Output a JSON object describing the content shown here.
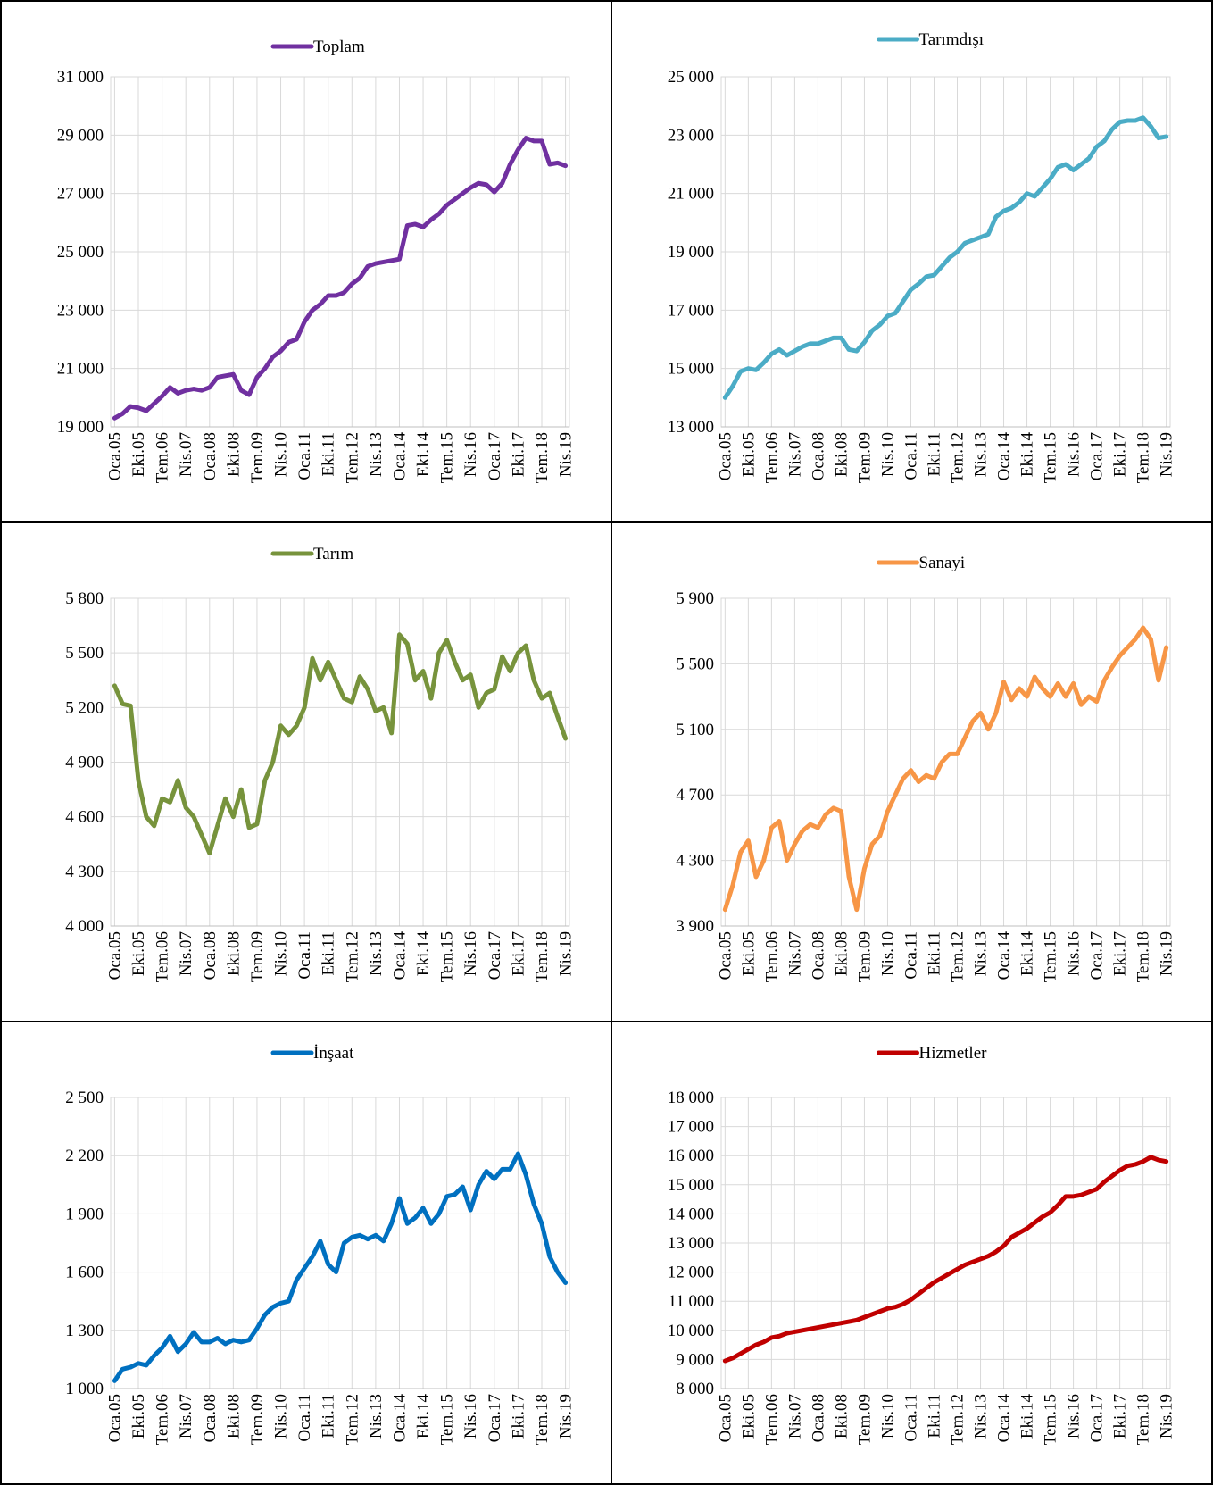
{
  "chart_data": [
    {
      "type": "line",
      "grid": true,
      "categories": [
        "Oca.05",
        null,
        null,
        "Eki.05",
        null,
        null,
        "Tem.06",
        null,
        null,
        "Nis.07",
        null,
        null,
        "Oca.08",
        null,
        null,
        "Eki.08",
        null,
        null,
        "Tem.09",
        null,
        null,
        "Nis.10",
        null,
        null,
        "Oca.11",
        null,
        null,
        "Eki.11",
        null,
        null,
        "Tem.12",
        null,
        null,
        "Nis.13",
        null,
        null,
        "Oca.14",
        null,
        null,
        "Eki.14",
        null,
        null,
        "Tem.15",
        null,
        null,
        "Nis.16",
        null,
        null,
        "Oca.17",
        null,
        null,
        "Eki.17",
        null,
        null,
        "Tem.18",
        null,
        null,
        "Nis.19"
      ],
      "series": [
        {
          "name": "Toplam",
          "color": "#7030a0",
          "values": [
            19300,
            19450,
            19700,
            19650,
            19550,
            19800,
            20050,
            20350,
            20150,
            20250,
            20300,
            20250,
            20350,
            20700,
            20750,
            20800,
            20250,
            20100,
            20700,
            21000,
            21400,
            21600,
            21900,
            22000,
            22600,
            23000,
            23200,
            23500,
            23500,
            23600,
            23900,
            24100,
            24500,
            24600,
            24650,
            24700,
            24750,
            25900,
            25950,
            25850,
            26100,
            26300,
            26600,
            26800,
            27000,
            27200,
            27350,
            27300,
            27050,
            27350,
            28000,
            28500,
            28900,
            28800,
            28800,
            28000,
            28050,
            27950
          ]
        }
      ],
      "ylim": [
        19000,
        31000
      ],
      "yticks": [
        {
          "value": 19000,
          "label": "19 000"
        },
        {
          "value": 21000,
          "label": "21 000"
        },
        {
          "value": 23000,
          "label": "23 000"
        },
        {
          "value": 25000,
          "label": "25 000"
        },
        {
          "value": 27000,
          "label": "27 000"
        },
        {
          "value": 29000,
          "label": "29 000"
        },
        {
          "value": 31000,
          "label": "31 000"
        }
      ]
    },
    {
      "type": "line",
      "grid": true,
      "categories": [
        "Oca.05",
        null,
        null,
        "Eki.05",
        null,
        null,
        "Tem.06",
        null,
        null,
        "Nis.07",
        null,
        null,
        "Oca.08",
        null,
        null,
        "Eki.08",
        null,
        null,
        "Tem.09",
        null,
        null,
        "Nis.10",
        null,
        null,
        "Oca.11",
        null,
        null,
        "Eki.11",
        null,
        null,
        "Tem.12",
        null,
        null,
        "Nis.13",
        null,
        null,
        "Oca.14",
        null,
        null,
        "Eki.14",
        null,
        null,
        "Tem.15",
        null,
        null,
        "Nis.16",
        null,
        null,
        "Oca.17",
        null,
        null,
        "Eki.17",
        null,
        null,
        "Tem.18",
        null,
        null,
        "Nis.19"
      ],
      "series": [
        {
          "name": "Tarımdışı",
          "color": "#4bacc6",
          "values": [
            14000,
            14400,
            14900,
            15000,
            14950,
            15200,
            15500,
            15650,
            15450,
            15600,
            15750,
            15850,
            15850,
            15950,
            16050,
            16050,
            15650,
            15600,
            15900,
            16300,
            16500,
            16800,
            16900,
            17300,
            17700,
            17900,
            18150,
            18200,
            18500,
            18800,
            19000,
            19300,
            19400,
            19500,
            19600,
            20200,
            20400,
            20500,
            20700,
            21000,
            20900,
            21200,
            21500,
            21900,
            22000,
            21800,
            22000,
            22200,
            22600,
            22800,
            23200,
            23450,
            23500,
            23500,
            23600,
            23300,
            22900,
            22950
          ]
        }
      ],
      "ylim": [
        13000,
        25000
      ],
      "yticks": [
        {
          "value": 13000,
          "label": "13 000"
        },
        {
          "value": 15000,
          "label": "15 000"
        },
        {
          "value": 17000,
          "label": "17 000"
        },
        {
          "value": 19000,
          "label": "19 000"
        },
        {
          "value": 21000,
          "label": "21 000"
        },
        {
          "value": 23000,
          "label": "23 000"
        },
        {
          "value": 25000,
          "label": "25 000"
        }
      ]
    },
    {
      "type": "line",
      "grid": true,
      "categories": [
        "Oca.05",
        null,
        null,
        "Eki.05",
        null,
        null,
        "Tem.06",
        null,
        null,
        "Nis.07",
        null,
        null,
        "Oca.08",
        null,
        null,
        "Eki.08",
        null,
        null,
        "Tem.09",
        null,
        null,
        "Nis.10",
        null,
        null,
        "Oca.11",
        null,
        null,
        "Eki.11",
        null,
        null,
        "Tem.12",
        null,
        null,
        "Nis.13",
        null,
        null,
        "Oca.14",
        null,
        null,
        "Eki.14",
        null,
        null,
        "Tem.15",
        null,
        null,
        "Nis.16",
        null,
        null,
        "Oca.17",
        null,
        null,
        "Eki.17",
        null,
        null,
        "Tem.18",
        null,
        null,
        "Nis.19"
      ],
      "series": [
        {
          "name": "Tarım",
          "color": "#77933c",
          "values": [
            5320,
            5220,
            5210,
            4800,
            4600,
            4550,
            4700,
            4680,
            4800,
            4650,
            4600,
            4500,
            4400,
            4550,
            4700,
            4600,
            4750,
            4540,
            4560,
            4800,
            4900,
            5100,
            5050,
            5100,
            5200,
            5470,
            5350,
            5450,
            5350,
            5250,
            5230,
            5370,
            5300,
            5180,
            5200,
            5060,
            5600,
            5550,
            5350,
            5400,
            5250,
            5500,
            5570,
            5450,
            5350,
            5380,
            5200,
            5280,
            5300,
            5480,
            5400,
            5500,
            5540,
            5350,
            5250,
            5280,
            5150,
            5030
          ]
        }
      ],
      "ylim": [
        4000,
        5800
      ],
      "yticks": [
        {
          "value": 4000,
          "label": "4 000"
        },
        {
          "value": 4300,
          "label": "4 300"
        },
        {
          "value": 4600,
          "label": "4 600"
        },
        {
          "value": 4900,
          "label": "4 900"
        },
        {
          "value": 5200,
          "label": "5 200"
        },
        {
          "value": 5500,
          "label": "5 500"
        },
        {
          "value": 5800,
          "label": "5 800"
        }
      ]
    },
    {
      "type": "line",
      "grid": true,
      "categories": [
        "Oca.05",
        null,
        null,
        "Eki.05",
        null,
        null,
        "Tem.06",
        null,
        null,
        "Nis.07",
        null,
        null,
        "Oca.08",
        null,
        null,
        "Eki.08",
        null,
        null,
        "Tem.09",
        null,
        null,
        "Nis.10",
        null,
        null,
        "Oca.11",
        null,
        null,
        "Eki.11",
        null,
        null,
        "Tem.12",
        null,
        null,
        "Nis.13",
        null,
        null,
        "Oca.14",
        null,
        null,
        "Eki.14",
        null,
        null,
        "Tem.15",
        null,
        null,
        "Nis.16",
        null,
        null,
        "Oca.17",
        null,
        null,
        "Eki.17",
        null,
        null,
        "Tem.18",
        null,
        null,
        "Nis.19"
      ],
      "series": [
        {
          "name": "Sanayi",
          "color": "#f79646",
          "values": [
            4000,
            4150,
            4350,
            4420,
            4200,
            4300,
            4500,
            4540,
            4300,
            4400,
            4480,
            4520,
            4500,
            4580,
            4620,
            4600,
            4200,
            4000,
            4250,
            4400,
            4450,
            4600,
            4700,
            4800,
            4850,
            4780,
            4820,
            4800,
            4900,
            4950,
            4950,
            5050,
            5150,
            5200,
            5100,
            5200,
            5390,
            5280,
            5350,
            5300,
            5420,
            5350,
            5300,
            5380,
            5300,
            5380,
            5250,
            5300,
            5270,
            5400,
            5480,
            5550,
            5600,
            5650,
            5720,
            5650,
            5400,
            5600
          ]
        }
      ],
      "ylim": [
        3900,
        5900
      ],
      "yticks": [
        {
          "value": 3900,
          "label": "3 900"
        },
        {
          "value": 4300,
          "label": "4 300"
        },
        {
          "value": 4700,
          "label": "4 700"
        },
        {
          "value": 5100,
          "label": "5 100"
        },
        {
          "value": 5500,
          "label": "5 500"
        },
        {
          "value": 5900,
          "label": "5 900"
        }
      ]
    },
    {
      "type": "line",
      "grid": true,
      "categories": [
        "Oca.05",
        null,
        null,
        "Eki.05",
        null,
        null,
        "Tem.06",
        null,
        null,
        "Nis.07",
        null,
        null,
        "Oca.08",
        null,
        null,
        "Eki.08",
        null,
        null,
        "Tem.09",
        null,
        null,
        "Nis.10",
        null,
        null,
        "Oca.11",
        null,
        null,
        "Eki.11",
        null,
        null,
        "Tem.12",
        null,
        null,
        "Nis.13",
        null,
        null,
        "Oca.14",
        null,
        null,
        "Eki.14",
        null,
        null,
        "Tem.15",
        null,
        null,
        "Nis.16",
        null,
        null,
        "Oca.17",
        null,
        null,
        "Eki.17",
        null,
        null,
        "Tem.18",
        null,
        null,
        "Nis.19"
      ],
      "series": [
        {
          "name": "İnşaat",
          "color": "#0070c0",
          "values": [
            1040,
            1100,
            1110,
            1130,
            1120,
            1170,
            1210,
            1270,
            1190,
            1230,
            1290,
            1240,
            1240,
            1260,
            1230,
            1250,
            1240,
            1250,
            1310,
            1380,
            1420,
            1440,
            1450,
            1560,
            1620,
            1680,
            1760,
            1640,
            1600,
            1750,
            1780,
            1790,
            1770,
            1790,
            1760,
            1850,
            1980,
            1850,
            1880,
            1930,
            1850,
            1900,
            1990,
            2000,
            2040,
            1920,
            2050,
            2120,
            2080,
            2130,
            2130,
            2210,
            2100,
            1950,
            1850,
            1680,
            1600,
            1545
          ]
        }
      ],
      "ylim": [
        1000,
        2500
      ],
      "yticks": [
        {
          "value": 1000,
          "label": "1 000"
        },
        {
          "value": 1300,
          "label": "1 300"
        },
        {
          "value": 1600,
          "label": "1 600"
        },
        {
          "value": 1900,
          "label": "1 900"
        },
        {
          "value": 2200,
          "label": "2 200"
        },
        {
          "value": 2500,
          "label": "2 500"
        }
      ]
    },
    {
      "type": "line",
      "grid": true,
      "categories": [
        "Oca.05",
        null,
        null,
        "Eki.05",
        null,
        null,
        "Tem.06",
        null,
        null,
        "Nis.07",
        null,
        null,
        "Oca.08",
        null,
        null,
        "Eki.08",
        null,
        null,
        "Tem.09",
        null,
        null,
        "Nis.10",
        null,
        null,
        "Oca.11",
        null,
        null,
        "Eki.11",
        null,
        null,
        "Tem.12",
        null,
        null,
        "Nis.13",
        null,
        null,
        "Oca.14",
        null,
        null,
        "Eki.14",
        null,
        null,
        "Tem.15",
        null,
        null,
        "Nis.16",
        null,
        null,
        "Oca.17",
        null,
        null,
        "Eki.17",
        null,
        null,
        "Tem.18",
        null,
        null,
        "Nis.19"
      ],
      "series": [
        {
          "name": "Hizmetler",
          "color": "#c00000",
          "values": [
            8950,
            9050,
            9200,
            9350,
            9500,
            9600,
            9750,
            9800,
            9900,
            9950,
            10000,
            10050,
            10100,
            10150,
            10200,
            10250,
            10300,
            10350,
            10450,
            10550,
            10650,
            10750,
            10800,
            10900,
            11050,
            11250,
            11450,
            11650,
            11800,
            11950,
            12100,
            12250,
            12350,
            12450,
            12550,
            12700,
            12900,
            13200,
            13350,
            13500,
            13700,
            13900,
            14050,
            14300,
            14600,
            14600,
            14650,
            14750,
            14850,
            15100,
            15300,
            15500,
            15650,
            15700,
            15800,
            15950,
            15850,
            15800
          ]
        }
      ],
      "ylim": [
        8000,
        18000
      ],
      "yticks": [
        {
          "value": 8000,
          "label": "8 000"
        },
        {
          "value": 9000,
          "label": "9 000"
        },
        {
          "value": 10000,
          "label": "10 000"
        },
        {
          "value": 11000,
          "label": "11 000"
        },
        {
          "value": 12000,
          "label": "12 000"
        },
        {
          "value": 13000,
          "label": "13 000"
        },
        {
          "value": 14000,
          "label": "14 000"
        },
        {
          "value": 15000,
          "label": "15 000"
        },
        {
          "value": 16000,
          "label": "16 000"
        },
        {
          "value": 17000,
          "label": "17 000"
        },
        {
          "value": 18000,
          "label": "18 000"
        }
      ]
    }
  ]
}
